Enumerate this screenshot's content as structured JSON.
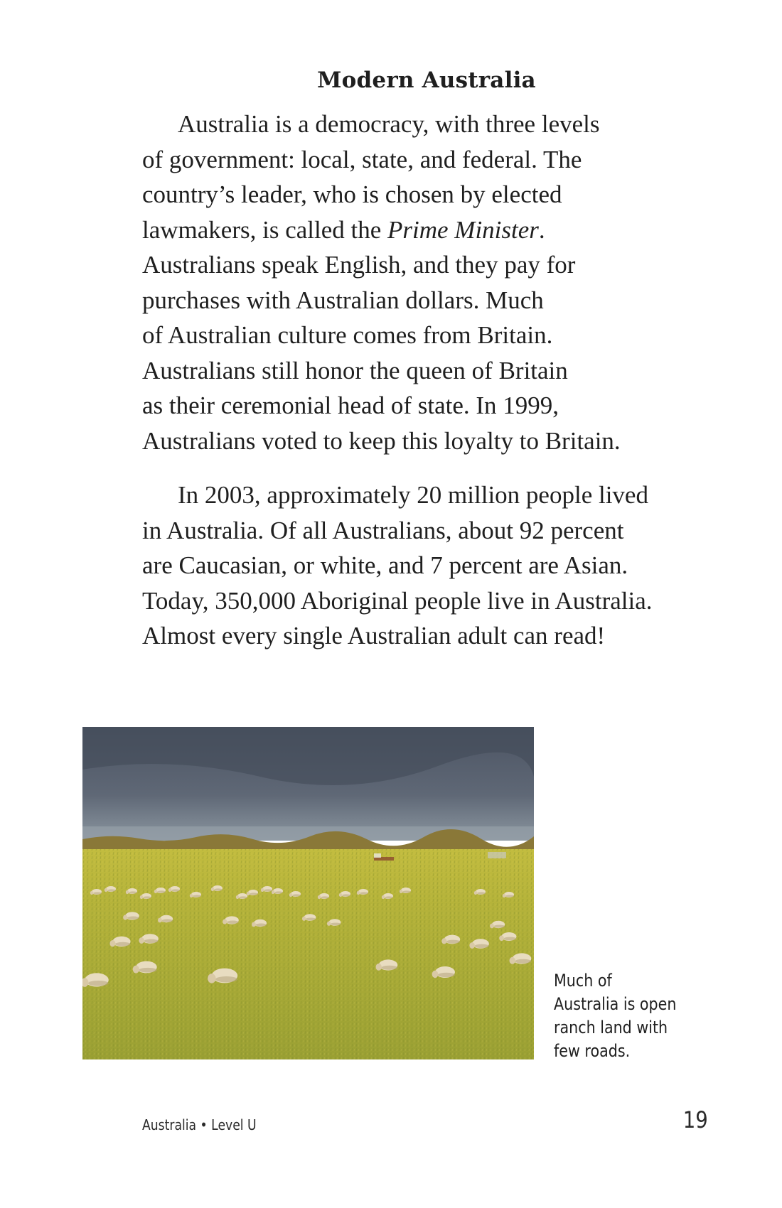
{
  "heading": "Modern Australia",
  "paragraph1": {
    "lines": [
      "Australia is a democracy, with three levels",
      "of government: local, state, and federal. The",
      "country’s leader, who is chosen by elected"
    ],
    "line4_before": "lawmakers, is called the ",
    "line4_italic": "Prime Minister",
    "line4_after": ".",
    "lines_rest": [
      "Australians speak English, and they pay for",
      "purchases with Australian dollars. Much",
      "of Australian culture comes from Britain.",
      "Australians still honor the queen of Britain",
      "as their ceremonial head of state. In 1999,",
      "Australians voted to keep this loyalty to Britain."
    ]
  },
  "paragraph2": {
    "lines": [
      "In 2003, approximately 20 million people lived",
      "in Australia. Of all Australians, about 92 percent",
      "are Caucasian, or white, and 7 percent are Asian.",
      "Today, 350,000 Aboriginal people live in Australia.",
      "Almost every single Australian adult can read!"
    ]
  },
  "photo": {
    "subject": "sheep-grazing-ranch-land",
    "colors": {
      "sky_top": "#4e5665",
      "sky_bottom": "#7d8894",
      "treeline": "#8a7a3a",
      "field_far": "#b9b63a",
      "field_near": "#a0a234",
      "sheep": "#e8dcc0"
    }
  },
  "caption": {
    "lines": [
      "Much of",
      "Australia is open",
      "ranch land with",
      "few roads."
    ]
  },
  "footer": {
    "book_title": "Australia • Level U",
    "page_number": "19"
  }
}
